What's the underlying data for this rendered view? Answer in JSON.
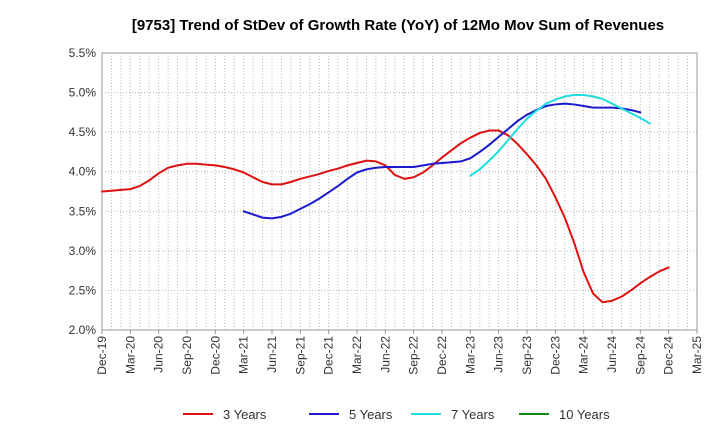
{
  "chart_data": {
    "type": "line",
    "title": "[9753]  Trend of StDev of Growth Rate (YoY) of 12Mo Mov Sum of Revenues",
    "xlabel": "",
    "ylabel": "",
    "ylim": [
      2.0,
      5.5
    ],
    "y_ticks": [
      "5.5%",
      "5.0%",
      "4.5%",
      "4.0%",
      "3.5%",
      "3.0%",
      "2.5%",
      "2.0%"
    ],
    "y_tick_values": [
      5.5,
      5.0,
      4.5,
      4.0,
      3.5,
      3.0,
      2.5,
      2.0
    ],
    "x_ticks": [
      "Dec-19",
      "Mar-20",
      "Jun-20",
      "Sep-20",
      "Dec-20",
      "Mar-21",
      "Jun-21",
      "Sep-21",
      "Dec-21",
      "Mar-22",
      "Jun-22",
      "Sep-22",
      "Dec-22",
      "Mar-23",
      "Jun-23",
      "Sep-23",
      "Dec-23",
      "Mar-24",
      "Jun-24",
      "Sep-24",
      "Dec-24",
      "Mar-25"
    ],
    "x_months": 63,
    "grid": true,
    "legend_position": "bottom",
    "series": [
      {
        "name": "3 Years",
        "color": "#dd1111",
        "start_month": 0,
        "values": [
          3.75,
          3.76,
          3.77,
          3.78,
          3.82,
          3.89,
          3.98,
          4.05,
          4.08,
          4.1,
          4.1,
          4.09,
          4.08,
          4.06,
          4.03,
          3.99,
          3.93,
          3.87,
          3.84,
          3.84,
          3.87,
          3.91,
          3.94,
          3.97,
          4.01,
          4.04,
          4.08,
          4.11,
          4.14,
          4.13,
          4.08,
          3.96,
          3.91,
          3.93,
          3.99,
          4.08,
          4.18,
          4.27,
          4.36,
          4.43,
          4.49,
          4.52,
          4.52,
          4.46,
          4.35,
          4.22,
          4.08,
          3.91,
          3.68,
          3.42,
          3.1,
          2.73,
          2.46,
          2.35,
          2.37,
          2.42,
          2.5,
          2.59,
          2.67,
          2.74,
          2.79
        ]
      },
      {
        "name": "5 Years",
        "color": "#1a1acc",
        "start_month": 15,
        "values": [
          3.5,
          3.46,
          3.42,
          3.41,
          3.43,
          3.47,
          3.53,
          3.59,
          3.66,
          3.74,
          3.82,
          3.91,
          3.99,
          4.03,
          4.05,
          4.06,
          4.06,
          4.06,
          4.06,
          4.08,
          4.1,
          4.11,
          4.12,
          4.13,
          4.17,
          4.25,
          4.34,
          4.44,
          4.54,
          4.64,
          4.72,
          4.78,
          4.83,
          4.85,
          4.86,
          4.85,
          4.83,
          4.81,
          4.81,
          4.81,
          4.8,
          4.78,
          4.75
        ]
      },
      {
        "name": "7 Years",
        "color": "#22dddd",
        "start_month": 39,
        "values": [
          3.95,
          4.03,
          4.14,
          4.26,
          4.4,
          4.54,
          4.67,
          4.77,
          4.86,
          4.91,
          4.95,
          4.97,
          4.97,
          4.95,
          4.92,
          4.86,
          4.8,
          4.74,
          4.68,
          4.61
        ]
      },
      {
        "name": "10 Years",
        "color": "#118811",
        "start_month": 0,
        "values": []
      }
    ]
  }
}
